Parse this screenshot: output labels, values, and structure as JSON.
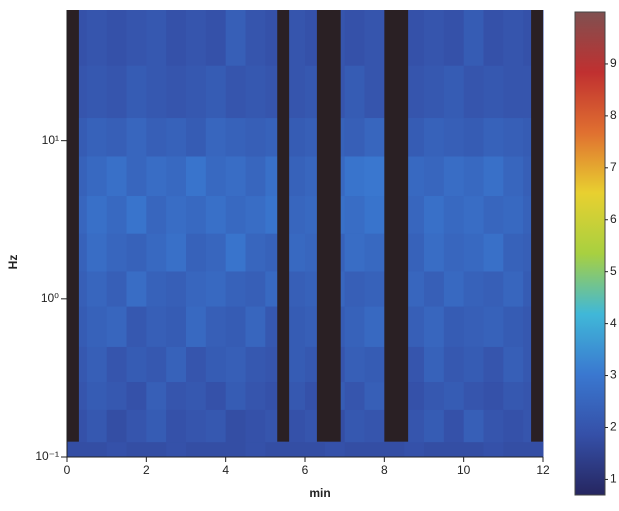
{
  "chart_data": {
    "type": "heatmap",
    "xlabel": "min",
    "ylabel": "Hz",
    "xlim": [
      0,
      12
    ],
    "xticks": [
      0,
      2,
      4,
      6,
      8,
      10,
      12
    ],
    "ylim": [
      0.1,
      67
    ],
    "log_y": true,
    "yticks": [
      {
        "value": 0.1,
        "label": "10⁻¹"
      },
      {
        "value": 1,
        "label": "10⁰"
      },
      {
        "value": 10,
        "label": "10¹"
      }
    ],
    "x_edges": [
      0,
      0.5,
      1,
      1.5,
      2,
      2.5,
      3,
      3.5,
      4,
      4.5,
      5,
      5.5,
      6,
      6.5,
      7,
      7.5,
      8,
      8.5,
      9,
      9.5,
      10,
      10.5,
      11,
      11.5,
      12
    ],
    "y_edges": [
      0.1,
      0.125,
      0.2,
      0.3,
      0.5,
      0.9,
      1.5,
      2.6,
      4.5,
      8,
      14,
      30,
      67
    ],
    "values": [
      [
        1.8,
        1.8,
        1.9,
        1.8,
        1.8,
        1.9,
        1.8,
        1.8,
        1.8,
        1.9,
        1.8,
        1.8,
        1.8,
        1.9,
        1.8,
        1.8,
        1.8,
        1.9,
        1.8,
        1.8,
        1.8,
        1.9,
        1.8,
        1.8
      ],
      [
        1.9,
        2.1,
        1.8,
        2.0,
        2.2,
        1.9,
        2.0,
        2.1,
        1.8,
        1.9,
        2.0,
        1.9,
        2.0,
        1.8,
        2.1,
        2.0,
        1.9,
        2.0,
        2.2,
        1.9,
        2.3,
        2.0,
        1.9,
        2.0
      ],
      [
        2.0,
        2.2,
        2.1,
        1.9,
        2.3,
        2.0,
        2.1,
        1.9,
        2.2,
        2.0,
        1.9,
        2.1,
        1.9,
        2.2,
        2.0,
        2.3,
        2.0,
        1.9,
        2.1,
        2.2,
        2.0,
        1.9,
        2.1,
        2.0
      ],
      [
        2.1,
        2.3,
        2.0,
        2.2,
        2.1,
        2.4,
        2.0,
        2.2,
        2.3,
        2.1,
        2.0,
        2.2,
        2.1,
        2.0,
        2.3,
        2.2,
        2.1,
        2.0,
        2.4,
        2.1,
        2.2,
        2.0,
        2.3,
        2.1
      ],
      [
        2.2,
        2.4,
        2.5,
        2.1,
        2.3,
        2.2,
        2.6,
        2.3,
        2.2,
        2.5,
        2.1,
        2.2,
        2.3,
        2.2,
        2.4,
        2.6,
        2.2,
        2.3,
        2.5,
        2.2,
        2.3,
        2.4,
        2.2,
        2.1
      ],
      [
        2.3,
        2.5,
        2.3,
        2.7,
        2.4,
        2.3,
        2.5,
        2.6,
        2.4,
        2.3,
        2.6,
        2.3,
        2.4,
        2.5,
        2.3,
        2.4,
        2.2,
        2.5,
        2.3,
        2.6,
        2.4,
        2.3,
        2.5,
        2.2
      ],
      [
        2.4,
        2.7,
        2.5,
        2.4,
        2.6,
        2.8,
        2.4,
        2.5,
        2.9,
        2.5,
        2.4,
        2.6,
        2.5,
        2.4,
        2.7,
        2.6,
        2.5,
        2.4,
        2.7,
        2.5,
        2.6,
        2.8,
        2.4,
        2.3
      ],
      [
        2.5,
        2.8,
        2.6,
        2.9,
        2.5,
        2.7,
        2.6,
        2.8,
        2.6,
        2.7,
        2.9,
        2.5,
        2.6,
        2.8,
        2.7,
        2.9,
        2.6,
        2.5,
        2.8,
        2.6,
        2.7,
        2.5,
        2.6,
        2.4
      ],
      [
        2.4,
        2.6,
        2.8,
        2.5,
        2.7,
        2.6,
        2.9,
        2.6,
        2.7,
        2.5,
        2.8,
        2.4,
        2.5,
        2.6,
        2.9,
        3.0,
        2.7,
        2.6,
        2.5,
        2.7,
        2.6,
        2.8,
        2.5,
        2.3
      ],
      [
        2.2,
        2.4,
        2.3,
        2.5,
        2.3,
        2.4,
        2.2,
        2.5,
        2.4,
        2.3,
        2.4,
        2.2,
        2.3,
        2.4,
        2.3,
        2.5,
        2.3,
        2.2,
        2.4,
        2.3,
        2.2,
        2.4,
        2.3,
        2.2
      ],
      [
        2.0,
        2.1,
        2.0,
        2.2,
        2.1,
        2.0,
        2.1,
        2.2,
        2.0,
        2.1,
        2.0,
        2.0,
        2.1,
        2.0,
        2.2,
        2.0,
        2.1,
        2.0,
        2.1,
        2.2,
        2.0,
        2.1,
        2.0,
        2.0
      ],
      [
        1.9,
        2.0,
        1.9,
        2.0,
        2.1,
        1.9,
        2.0,
        1.9,
        2.3,
        2.0,
        1.9,
        2.0,
        1.9,
        2.0,
        1.9,
        2.0,
        2.1,
        1.9,
        2.0,
        1.9,
        2.2,
        1.9,
        2.0,
        1.9
      ]
    ],
    "gaps": [
      [
        0,
        0.3
      ],
      [
        5.3,
        5.6
      ],
      [
        6.3,
        6.9
      ],
      [
        8.0,
        8.6
      ],
      [
        11.7,
        12.0
      ]
    ],
    "gap_ylim": [
      0.125,
      67
    ],
    "gap_color": "#2a2024",
    "clim": [
      0.7,
      10
    ],
    "colorbar_ticks": [
      1,
      2,
      3,
      4,
      5,
      6,
      7,
      8,
      9
    ],
    "colormap": [
      "#262660",
      "#3550a8",
      "#3a78d0",
      "#40b8d8",
      "#a8d040",
      "#e8d030",
      "#e07030",
      "#c03030",
      "#805050"
    ]
  }
}
